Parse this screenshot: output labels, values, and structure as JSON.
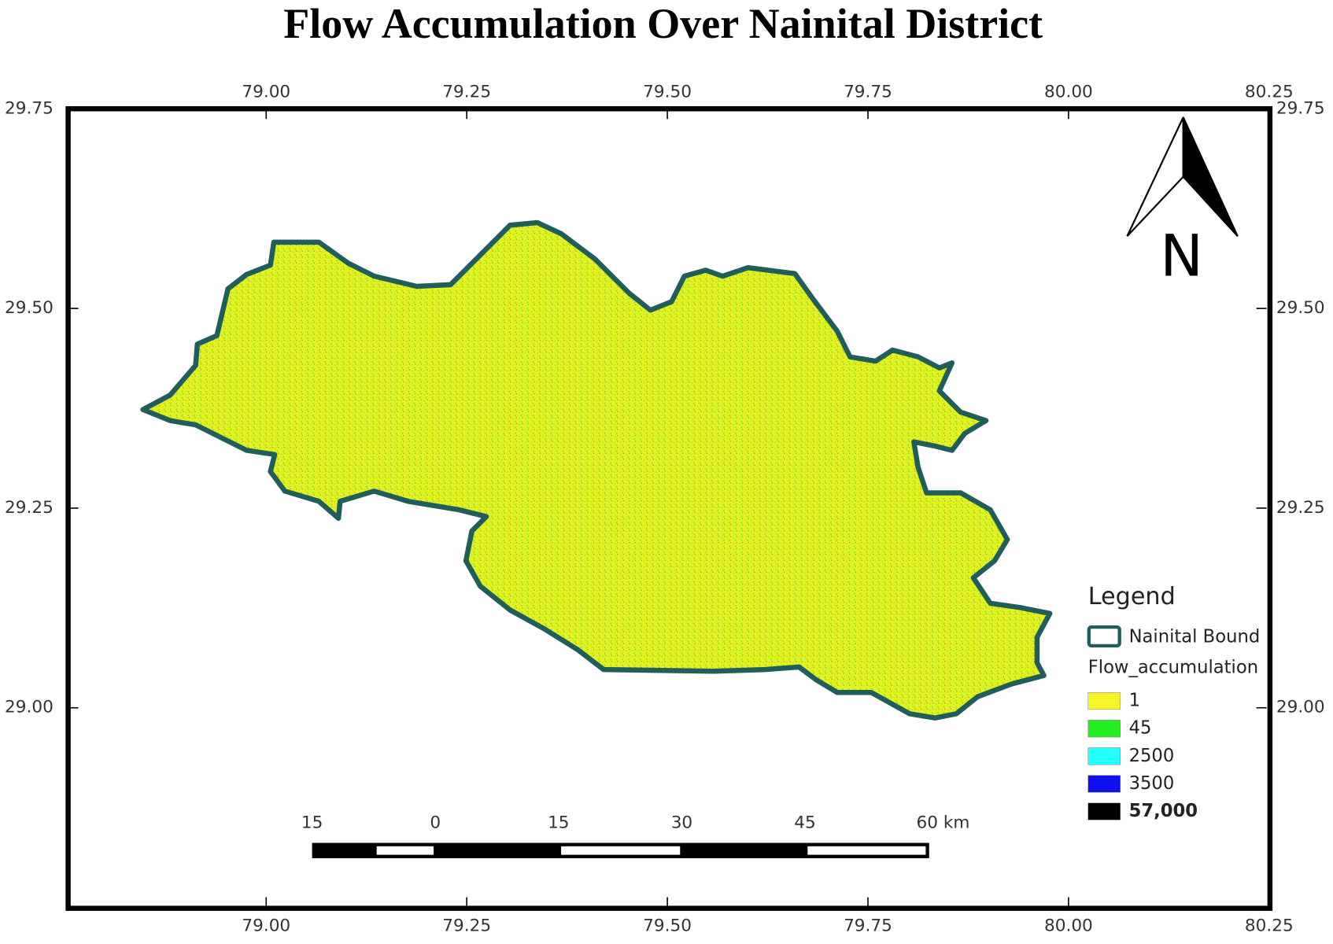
{
  "title": "Flow Accumulation Over Nainital District",
  "map": {
    "lon_range": [
      78.75,
      80.25
    ],
    "lat_range": [
      28.75,
      29.75
    ],
    "lon_ticks": [
      {
        "value": 79,
        "label": "79.00"
      },
      {
        "value": 79.25,
        "label": "79.25"
      },
      {
        "value": 79.5,
        "label": "79.50"
      },
      {
        "value": 79.75,
        "label": "79.75"
      },
      {
        "value": 80,
        "label": "80.00"
      },
      {
        "value": 80.25,
        "label": "80.25"
      }
    ],
    "lat_ticks": [
      {
        "value": 29.75,
        "label": "29.75"
      },
      {
        "value": 29.5,
        "label": "29.50"
      },
      {
        "value": 29.25,
        "label": "29.25"
      },
      {
        "value": 29,
        "label": "29.00"
      }
    ]
  },
  "north_label": "N",
  "legend": {
    "title": "Legend",
    "boundary": "Nainital Bound",
    "layer": "Flow_accumulation",
    "items": [
      {
        "label": "1",
        "color": "#f5f52a"
      },
      {
        "label": "45",
        "color": "#22ee22"
      },
      {
        "label": "2500",
        "color": "#22ffff"
      },
      {
        "label": "3500",
        "color": "#1010ee"
      },
      {
        "label": "57,000",
        "color": "#000000"
      }
    ]
  },
  "scale_bar": [
    "15",
    "0",
    "15",
    "30",
    "45",
    "60 km"
  ]
}
